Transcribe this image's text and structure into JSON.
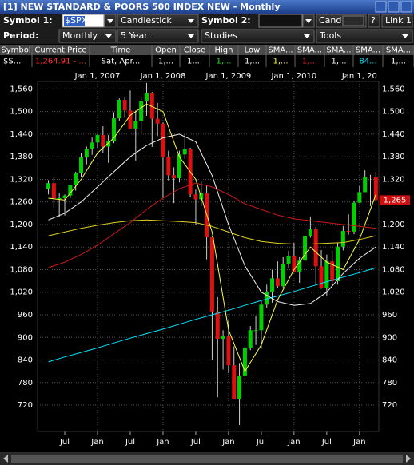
{
  "window": {
    "title": "[1] NEW STANDARD & POORS 500 INDEX NEW - Monthly"
  },
  "toolbar": {
    "symbol1_label": "Symbol 1:",
    "symbol1_value": "$SPX",
    "chart_style": "Candlestick",
    "symbol2_label": "Symbol 2:",
    "symbol2_style": "Cand",
    "link": "Link 1",
    "help": "?",
    "period_label": "Period:",
    "period": "Monthly",
    "range": "5 Year",
    "studies": "Studies",
    "tools": "Tools"
  },
  "table": {
    "headers": [
      "Symbol",
      "Current Price",
      "Time",
      "Open",
      "Close",
      "High",
      "Low",
      "SMA...",
      "SMA...",
      "SMA...",
      "SMA...",
      "SMA..."
    ],
    "rows": [
      [
        "$S...",
        "1,264.91 - ...",
        "Sat, Apr...",
        "1,...",
        "1,...",
        "1,...",
        "1,...",
        "1,...",
        "1,...",
        "1,...",
        "84...",
        "1,..."
      ]
    ]
  },
  "chart_data": {
    "type": "candlestick",
    "x": [
      "2006-04",
      "2006-05",
      "2006-06",
      "2006-07",
      "2006-08",
      "2006-09",
      "2006-10",
      "2006-11",
      "2006-12",
      "2007-01",
      "2007-02",
      "2007-03",
      "2007-04",
      "2007-05",
      "2007-06",
      "2007-07",
      "2007-08",
      "2007-09",
      "2007-10",
      "2007-11",
      "2007-12",
      "2008-01",
      "2008-02",
      "2008-03",
      "2008-04",
      "2008-05",
      "2008-06",
      "2008-07",
      "2008-08",
      "2008-09",
      "2008-10",
      "2008-11",
      "2008-12",
      "2009-01",
      "2009-02",
      "2009-03",
      "2009-04",
      "2009-05",
      "2009-06",
      "2009-07",
      "2009-08",
      "2009-09",
      "2009-10",
      "2009-11",
      "2009-12",
      "2010-01",
      "2010-02",
      "2010-03",
      "2010-04",
      "2010-05",
      "2010-06",
      "2010-07",
      "2010-08",
      "2010-09",
      "2010-10",
      "2010-11",
      "2010-12",
      "2011-01",
      "2011-02",
      "2011-03",
      "2011-04"
    ],
    "open": [
      1295,
      1310,
      1270,
      1270,
      1277,
      1304,
      1336,
      1378,
      1401,
      1418,
      1438,
      1407,
      1421,
      1482,
      1531,
      1503,
      1455,
      1474,
      1527,
      1549,
      1481,
      1468,
      1379,
      1331,
      1323,
      1386,
      1400,
      1280,
      1267,
      1283,
      1166,
      969,
      896,
      903,
      826,
      735,
      798,
      873,
      919,
      919,
      987,
      1021,
      1057,
      1036,
      1096,
      1115,
      1074,
      1104,
      1169,
      1187,
      1089,
      1031,
      1102,
      1049,
      1141,
      1183,
      1181,
      1258,
      1286,
      1327,
      1326
    ],
    "high": [
      1318,
      1326,
      1284,
      1280,
      1306,
      1340,
      1389,
      1407,
      1431,
      1441,
      1461,
      1438,
      1498,
      1535,
      1540,
      1556,
      1503,
      1539,
      1576,
      1552,
      1523,
      1471,
      1396,
      1352,
      1396,
      1440,
      1404,
      1293,
      1314,
      1304,
      1168,
      1007,
      919,
      944,
      876,
      832,
      876,
      930,
      957,
      996,
      1040,
      1080,
      1102,
      1113,
      1130,
      1151,
      1113,
      1181,
      1220,
      1194,
      1132,
      1120,
      1130,
      1151,
      1196,
      1227,
      1263,
      1303,
      1344,
      1332,
      1340
    ],
    "low": [
      1280,
      1245,
      1219,
      1224,
      1270,
      1290,
      1327,
      1360,
      1385,
      1403,
      1389,
      1364,
      1416,
      1476,
      1484,
      1454,
      1370,
      1439,
      1489,
      1406,
      1435,
      1270,
      1317,
      1257,
      1312,
      1374,
      1272,
      1200,
      1249,
      1107,
      840,
      741,
      815,
      805,
      735,
      667,
      784,
      866,
      880,
      870,
      978,
      992,
      1030,
      1030,
      1086,
      1072,
      1045,
      1100,
      1165,
      1040,
      1029,
      1011,
      1040,
      1040,
      1131,
      1173,
      1174,
      1257,
      1290,
      1249,
      1260
    ],
    "close": [
      1310,
      1270,
      1270,
      1277,
      1304,
      1336,
      1378,
      1401,
      1418,
      1438,
      1407,
      1421,
      1482,
      1531,
      1503,
      1455,
      1474,
      1527,
      1549,
      1481,
      1468,
      1379,
      1331,
      1323,
      1386,
      1400,
      1280,
      1267,
      1283,
      1166,
      969,
      896,
      903,
      826,
      735,
      798,
      873,
      919,
      919,
      987,
      1021,
      1057,
      1036,
      1096,
      1115,
      1074,
      1104,
      1169,
      1187,
      1089,
      1031,
      1102,
      1049,
      1141,
      1183,
      1181,
      1258,
      1286,
      1327,
      1326,
      1265
    ],
    "up_color": "#00d000",
    "down_color": "#e01010",
    "wick_color": "#d0d0d0",
    "overlays": [
      {
        "color": "#00e5ff",
        "x": [
          "2006-04",
          "2006-07",
          "2006-10",
          "2007-01",
          "2007-04",
          "2007-07",
          "2007-10",
          "2008-01",
          "2008-04",
          "2008-07",
          "2008-10",
          "2009-01",
          "2009-04",
          "2009-07",
          "2009-10",
          "2010-01",
          "2010-04",
          "2010-07",
          "2010-10",
          "2011-01",
          "2011-04"
        ],
        "values": [
          835,
          848,
          860,
          872,
          885,
          898,
          910,
          922,
          935,
          948,
          960,
          972,
          985,
          998,
          1010,
          1022,
          1035,
          1048,
          1060,
          1072,
          1085
        ]
      },
      {
        "color": "#e0d020",
        "x": [
          "2006-04",
          "2006-07",
          "2006-10",
          "2007-01",
          "2007-04",
          "2007-07",
          "2007-10",
          "2008-01",
          "2008-04",
          "2008-07",
          "2008-10",
          "2009-01",
          "2009-04",
          "2009-07",
          "2009-10",
          "2010-01",
          "2010-04",
          "2010-07",
          "2010-10",
          "2011-01",
          "2011-04"
        ],
        "values": [
          1170,
          1180,
          1190,
          1198,
          1205,
          1210,
          1212,
          1210,
          1208,
          1205,
          1195,
          1180,
          1165,
          1155,
          1150,
          1148,
          1148,
          1150,
          1152,
          1160,
          1170
        ]
      },
      {
        "color": "#d01818",
        "x": [
          "2006-04",
          "2006-07",
          "2006-10",
          "2007-01",
          "2007-04",
          "2007-07",
          "2007-10",
          "2008-01",
          "2008-04",
          "2008-07",
          "2008-10",
          "2009-01",
          "2009-04",
          "2009-07",
          "2009-10",
          "2010-01",
          "2010-04",
          "2010-07",
          "2010-10",
          "2011-01",
          "2011-04"
        ],
        "values": [
          1085,
          1100,
          1120,
          1145,
          1175,
          1205,
          1240,
          1270,
          1295,
          1310,
          1300,
          1280,
          1255,
          1240,
          1225,
          1215,
          1210,
          1205,
          1200,
          1195,
          1190
        ]
      },
      {
        "color": "#f0f0f0",
        "x": [
          "2006-04",
          "2006-07",
          "2006-10",
          "2007-01",
          "2007-04",
          "2007-07",
          "2007-10",
          "2008-01",
          "2008-04",
          "2008-07",
          "2008-10",
          "2009-01",
          "2009-04",
          "2009-07",
          "2009-10",
          "2010-01",
          "2010-04",
          "2010-07",
          "2010-10",
          "2011-01",
          "2011-04"
        ],
        "values": [
          1212,
          1230,
          1260,
          1300,
          1340,
          1380,
          1410,
          1430,
          1440,
          1420,
          1330,
          1200,
          1090,
          1020,
          995,
          985,
          990,
          1020,
          1070,
          1110,
          1140
        ]
      },
      {
        "color": "#ffff40",
        "x": [
          "2006-04",
          "2006-07",
          "2006-10",
          "2007-01",
          "2007-04",
          "2007-07",
          "2007-10",
          "2008-01",
          "2008-04",
          "2008-07",
          "2008-10",
          "2009-01",
          "2009-04",
          "2009-07",
          "2009-10",
          "2010-01",
          "2010-04",
          "2010-07",
          "2010-10",
          "2011-01",
          "2011-04"
        ],
        "values": [
          1270,
          1265,
          1320,
          1390,
          1430,
          1490,
          1520,
          1500,
          1380,
          1320,
          1180,
          920,
          810,
          880,
          1000,
          1080,
          1140,
          1100,
          1080,
          1160,
          1280
        ]
      }
    ],
    "price_tag": {
      "value": 1265,
      "label": "1,265"
    },
    "ylim": [
      650,
      1580
    ],
    "yticks": [
      720,
      780,
      840,
      900,
      960,
      {
        "value": 1020,
        "label": "1,020"
      },
      {
        "value": 1080,
        "label": "1,080"
      },
      {
        "value": 1140,
        "label": "1,140"
      },
      {
        "value": 1200,
        "label": "1,200"
      },
      {
        "value": 1260,
        "label": "1,260"
      },
      {
        "value": 1320,
        "label": "1,320"
      },
      {
        "value": 1380,
        "label": "1,380"
      },
      {
        "value": 1440,
        "label": "1,440"
      },
      {
        "value": 1500,
        "label": "1,500"
      },
      {
        "value": 1560,
        "label": "1,560"
      }
    ],
    "xticks_top": [
      {
        "value": "2007-01",
        "label": "Jan 1, 2007"
      },
      {
        "value": "2008-01",
        "label": "Jan 1, 2008"
      },
      {
        "value": "2009-01",
        "label": "Jan 1, 2009"
      },
      {
        "value": "2010-01",
        "label": "Jan 1, 2010"
      },
      {
        "value": "2011-01",
        "label": "Jan 1, 20"
      }
    ],
    "xticks": [
      {
        "value": "2006-07",
        "label": "Jul"
      },
      {
        "value": "2007-01",
        "label": "Jan"
      },
      {
        "value": "2007-07",
        "label": "Jul"
      },
      {
        "value": "2008-01",
        "label": "Jan"
      },
      {
        "value": "2008-07",
        "label": "Jul"
      },
      {
        "value": "2009-01",
        "label": "Jan"
      },
      {
        "value": "2009-07",
        "label": "Jul"
      },
      {
        "value": "2010-01",
        "label": "Jan"
      },
      {
        "value": "2010-07",
        "label": "Jul"
      },
      {
        "value": "2011-01",
        "label": "Jan"
      }
    ],
    "grid": true
  }
}
